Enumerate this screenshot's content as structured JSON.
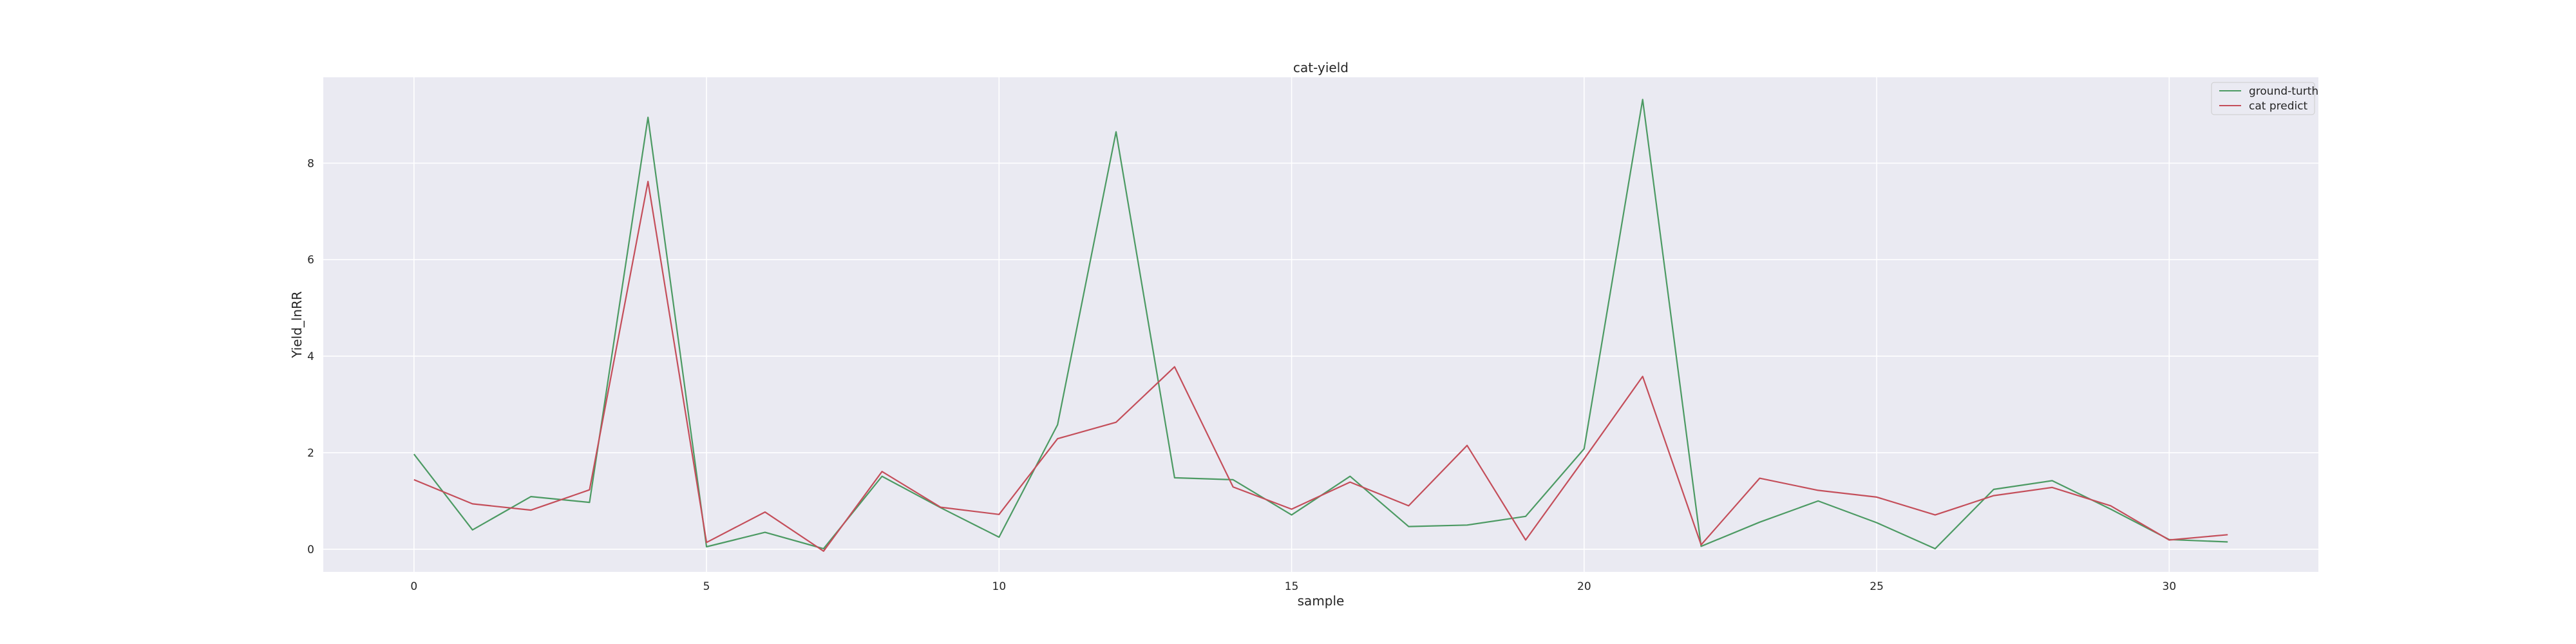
{
  "chart_data": {
    "type": "line",
    "title": "cat-yield",
    "xlabel": "sample",
    "ylabel": "Yield_lnRR",
    "xlim": [
      -1.55,
      32.55
    ],
    "ylim": [
      -0.47,
      9.78
    ],
    "xticks": [
      0,
      5,
      10,
      15,
      20,
      25,
      30
    ],
    "yticks": [
      0,
      2,
      4,
      6,
      8
    ],
    "grid": true,
    "legend_position": "top-right",
    "x": [
      0,
      1,
      2,
      3,
      4,
      5,
      6,
      7,
      8,
      9,
      10,
      11,
      12,
      13,
      14,
      15,
      16,
      17,
      18,
      19,
      20,
      21,
      22,
      23,
      24,
      25,
      26,
      27,
      28,
      29,
      30,
      31
    ],
    "series": [
      {
        "name": "ground-turth",
        "color": "#4c9a63",
        "values": [
          1.97,
          0.4,
          1.09,
          0.97,
          8.95,
          0.05,
          0.35,
          0.01,
          1.51,
          0.86,
          0.25,
          2.58,
          8.65,
          1.48,
          1.44,
          0.71,
          1.51,
          0.47,
          0.5,
          0.68,
          2.08,
          9.32,
          0.06,
          0.56,
          1.0,
          0.55,
          0.01,
          1.24,
          1.42,
          0.83,
          0.2,
          0.15
        ]
      },
      {
        "name": "cat predict",
        "color": "#c44e5a",
        "values": [
          1.44,
          0.94,
          0.81,
          1.23,
          7.62,
          0.14,
          0.77,
          -0.04,
          1.61,
          0.87,
          0.72,
          2.29,
          2.63,
          3.78,
          1.29,
          0.83,
          1.39,
          0.9,
          2.15,
          0.19,
          1.87,
          3.58,
          0.09,
          1.47,
          1.22,
          1.08,
          0.71,
          1.11,
          1.28,
          0.9,
          0.19,
          0.3
        ]
      }
    ]
  }
}
